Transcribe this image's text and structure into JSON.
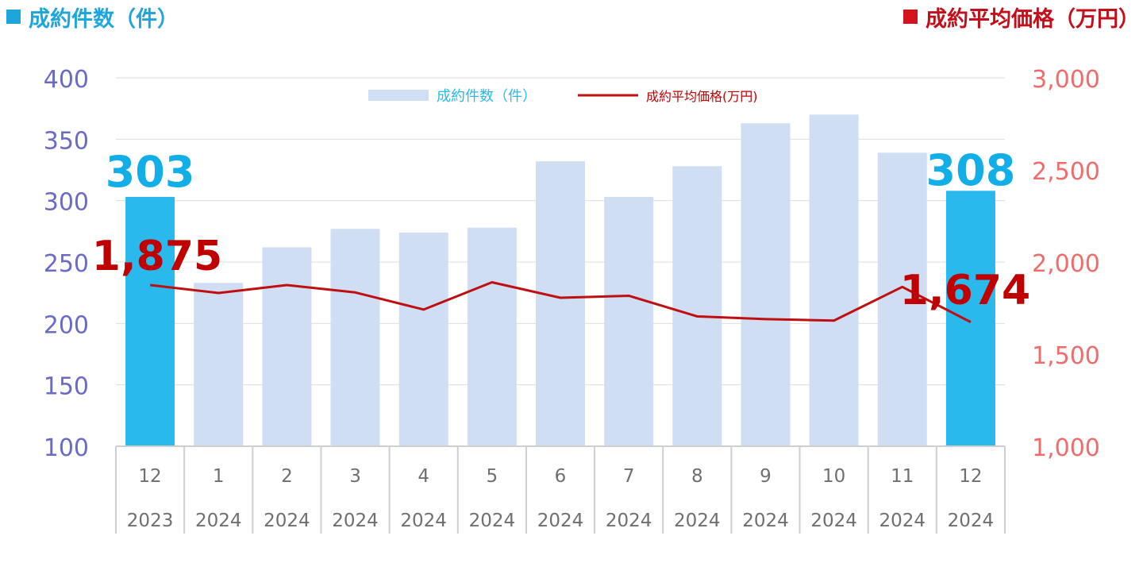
{
  "headers": {
    "left": "成約件数（件）",
    "right": "成約平均価格（万円）"
  },
  "colors": {
    "bar_highlight": "#29b9ed",
    "bar_normal": "#cfdef2",
    "line": "#bf0f10",
    "left_axis": "#6a6ac8",
    "right_axis": "#f26b6b",
    "grid": "#dedede",
    "label_highlight_bar": "#12aee8",
    "label_line": "#c00000"
  },
  "chart_data": {
    "type": "bar",
    "categories": [
      "12",
      "1",
      "2",
      "3",
      "4",
      "5",
      "6",
      "7",
      "8",
      "9",
      "10",
      "11",
      "12"
    ],
    "years": [
      "2023",
      "2024",
      "2024",
      "2024",
      "2024",
      "2024",
      "2024",
      "2024",
      "2024",
      "2024",
      "2024",
      "2024",
      "2024"
    ],
    "series": [
      {
        "name": "成約件数（件）",
        "type": "bar",
        "axis": "left",
        "values": [
          303,
          233,
          262,
          277,
          274,
          278,
          332,
          303,
          328,
          363,
          370,
          339,
          308
        ],
        "highlighted": [
          0,
          12
        ]
      },
      {
        "name": "成約平均価格(万円)",
        "type": "line",
        "axis": "right",
        "values": [
          1875,
          1832,
          1875,
          1835,
          1742,
          1890,
          1806,
          1817,
          1705,
          1690,
          1682,
          1865,
          1674
        ]
      }
    ],
    "y_left": {
      "ylim": [
        100,
        400
      ],
      "ticks": [
        "100",
        "150",
        "200",
        "250",
        "300",
        "350",
        "400"
      ]
    },
    "y_right": {
      "ylim": [
        1000,
        3000
      ],
      "ticks": [
        "1,000",
        "1,500",
        "2,000",
        "2,500",
        "3,000"
      ]
    },
    "annotations": {
      "bar_first": "303",
      "bar_last": "308",
      "line_first": "1,875",
      "line_last": "1,674"
    },
    "legend": {
      "position": "top-center",
      "bar_label": "成約件数（件）",
      "line_label": "成約平均価格(万円)"
    },
    "grid": true
  }
}
